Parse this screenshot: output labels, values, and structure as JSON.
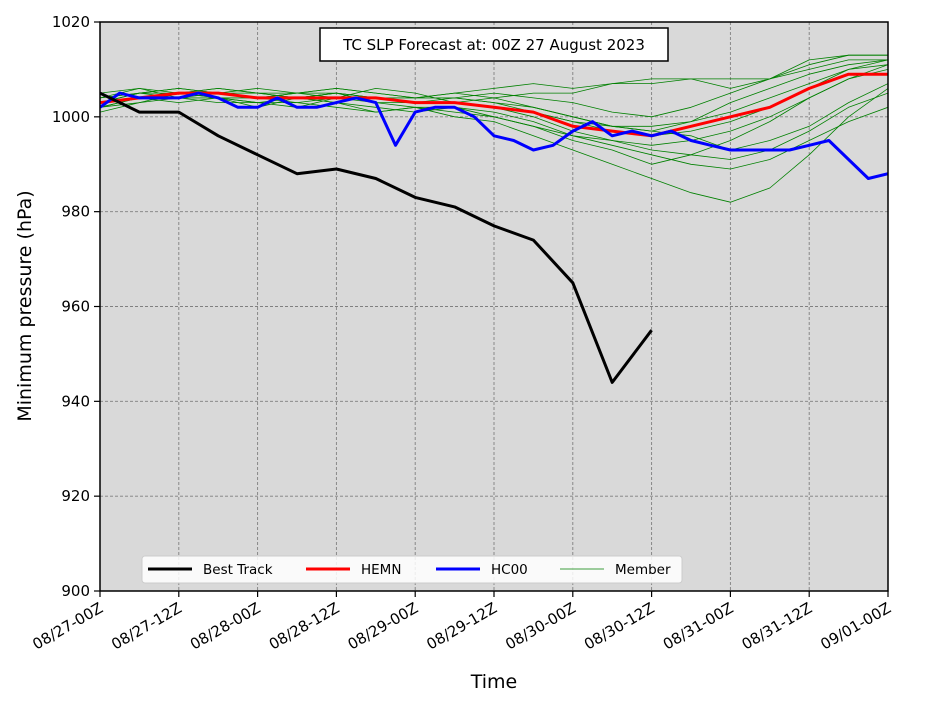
{
  "chart_data": {
    "type": "line",
    "title": "TC SLP Forecast at: 00Z 27 August 2023",
    "xlabel": "Time",
    "ylabel": "Minimum pressure (hPa)",
    "ylim": [
      900,
      1020
    ],
    "xlim": [
      0,
      120
    ],
    "x_unit": "hours after 08/27-00Z",
    "yticks": [
      900,
      920,
      940,
      960,
      980,
      1000,
      1020
    ],
    "xticks": [
      0,
      12,
      24,
      36,
      48,
      60,
      72,
      84,
      96,
      108,
      120
    ],
    "xtick_labels": [
      "08/27-00Z",
      "08/27-12Z",
      "08/28-00Z",
      "08/28-12Z",
      "08/29-00Z",
      "08/29-12Z",
      "08/30-00Z",
      "08/30-12Z",
      "08/31-00Z",
      "08/31-12Z",
      "09/01-00Z"
    ],
    "grid": true,
    "legend_position": "lower-left",
    "series": [
      {
        "name": "Best Track",
        "color": "#000000",
        "width": 3,
        "x": [
          0,
          6,
          12,
          18,
          24,
          30,
          36,
          42,
          48,
          54,
          60,
          66,
          72,
          78,
          84
        ],
        "y": [
          1005,
          1001,
          1001,
          996,
          992,
          988,
          989,
          987,
          983,
          981,
          977,
          974,
          965,
          944,
          955
        ]
      },
      {
        "name": "HEMN",
        "color": "#ff0000",
        "width": 3,
        "x": [
          0,
          6,
          12,
          18,
          24,
          30,
          36,
          42,
          48,
          54,
          60,
          66,
          72,
          78,
          84,
          90,
          96,
          102,
          108,
          114,
          120
        ],
        "y": [
          1003,
          1004,
          1005,
          1005,
          1004,
          1004,
          1004,
          1004,
          1003,
          1003,
          1002,
          1001,
          998,
          997,
          996,
          998,
          1000,
          1002,
          1006,
          1009,
          1009
        ]
      },
      {
        "name": "HC00",
        "color": "#0000ff",
        "width": 3,
        "x": [
          0,
          3,
          6,
          9,
          12,
          15,
          18,
          21,
          24,
          27,
          30,
          33,
          36,
          39,
          42,
          45,
          48,
          51,
          54,
          57,
          60,
          63,
          66,
          69,
          72,
          75,
          78,
          81,
          84,
          87,
          90,
          93,
          96,
          99,
          102,
          105,
          108,
          111,
          114,
          117,
          120
        ],
        "y": [
          1002,
          1005,
          1004,
          1004,
          1004,
          1005,
          1004,
          1002,
          1002,
          1004,
          1002,
          1002,
          1003,
          1004,
          1003,
          994,
          1001,
          1002,
          1002,
          1000,
          996,
          995,
          993,
          994,
          997,
          999,
          996,
          997,
          996,
          997,
          995,
          994,
          993,
          993,
          993,
          993,
          994,
          995,
          991,
          987,
          988
        ]
      },
      {
        "name": "Member",
        "color": "#008000",
        "width": 0.8,
        "members": [
          {
            "x": [
              0,
              6,
              12,
              18,
              24,
              30,
              36,
              42,
              48,
              54,
              60,
              66,
              72,
              78,
              84,
              90,
              96,
              102,
              108,
              114,
              120
            ],
            "y": [
              1004,
              1005,
              1006,
              1005,
              1005,
              1004,
              1005,
              1004,
              1004,
              1004,
              1005,
              1004,
              1003,
              1001,
              1000,
              1002,
              1005,
              1008,
              1011,
              1013,
              1013
            ]
          },
          {
            "x": [
              0,
              6,
              12,
              18,
              24,
              30,
              36,
              42,
              48,
              54,
              60,
              66,
              72,
              78,
              84,
              90,
              96,
              102,
              108,
              114,
              120
            ],
            "y": [
              1002,
              1004,
              1004,
              1003,
              1003,
              1002,
              1004,
              1003,
              1002,
              1001,
              1000,
              998,
              995,
              993,
              990,
              992,
              995,
              999,
              1004,
              1008,
              1010
            ]
          },
          {
            "x": [
              0,
              6,
              12,
              18,
              24,
              30,
              36,
              42,
              48,
              54,
              60,
              66,
              72,
              78,
              84,
              90,
              96,
              102,
              108,
              114,
              120
            ],
            "y": [
              1003,
              1005,
              1005,
              1004,
              1004,
              1005,
              1006,
              1005,
              1004,
              1005,
              1006,
              1007,
              1006,
              1007,
              1007,
              1008,
              1008,
              1008,
              1010,
              1012,
              1012
            ]
          },
          {
            "x": [
              0,
              6,
              12,
              18,
              24,
              30,
              36,
              42,
              48,
              54,
              60,
              66,
              72,
              78,
              84,
              90,
              96,
              102,
              108,
              114,
              120
            ],
            "y": [
              1001,
              1003,
              1004,
              1004,
              1003,
              1003,
              1002,
              1001,
              1002,
              1000,
              999,
              996,
              993,
              990,
              987,
              984,
              982,
              985,
              992,
              1000,
              1006
            ]
          },
          {
            "x": [
              0,
              6,
              12,
              18,
              24,
              30,
              36,
              42,
              48,
              54,
              60,
              66,
              72,
              78,
              84,
              90,
              96,
              102,
              108,
              114,
              120
            ],
            "y": [
              1005,
              1006,
              1005,
              1006,
              1005,
              1005,
              1006,
              1005,
              1004,
              1005,
              1004,
              1005,
              1005,
              1007,
              1008,
              1008,
              1006,
              1008,
              1012,
              1013,
              1013
            ]
          },
          {
            "x": [
              0,
              6,
              12,
              18,
              24,
              30,
              36,
              42,
              48,
              54,
              60,
              66,
              72,
              78,
              84,
              90,
              96,
              102,
              108,
              114,
              120
            ],
            "y": [
              1003,
              1004,
              1003,
              1004,
              1002,
              1004,
              1003,
              1001,
              1002,
              1002,
              1001,
              999,
              996,
              995,
              994,
              995,
              997,
              1000,
              1004,
              1008,
              1011
            ]
          },
          {
            "x": [
              0,
              6,
              12,
              18,
              24,
              30,
              36,
              42,
              48,
              54,
              60,
              66,
              72,
              78,
              84,
              90,
              96,
              102,
              108,
              114,
              120
            ],
            "y": [
              1002,
              1004,
              1005,
              1005,
              1004,
              1004,
              1005,
              1003,
              1003,
              1003,
              1004,
              1002,
              1000,
              998,
              997,
              996,
              993,
              995,
              998,
              1003,
              1007
            ]
          },
          {
            "x": [
              0,
              6,
              12,
              18,
              24,
              30,
              36,
              42,
              48,
              54,
              60,
              66,
              72,
              78,
              84,
              90,
              96,
              102,
              108,
              114,
              120
            ],
            "y": [
              1003,
              1005,
              1006,
              1005,
              1004,
              1003,
              1004,
              1004,
              1003,
              1004,
              1003,
              1001,
              999,
              997,
              996,
              997,
              999,
              1002,
              1006,
              1010,
              1012
            ]
          },
          {
            "x": [
              0,
              6,
              12,
              18,
              24,
              30,
              36,
              42,
              48,
              54,
              60,
              66,
              72,
              78,
              84,
              90,
              96,
              102,
              108,
              114,
              120
            ],
            "y": [
              1004,
              1006,
              1004,
              1005,
              1006,
              1005,
              1004,
              1006,
              1005,
              1003,
              1002,
              1000,
              997,
              995,
              993,
              992,
              991,
              993,
              997,
              1002,
              1005
            ]
          },
          {
            "x": [
              0,
              6,
              12,
              18,
              24,
              30,
              36,
              42,
              48,
              54,
              60,
              66,
              72,
              78,
              84,
              90,
              96,
              102,
              108,
              114,
              120
            ],
            "y": [
              1002,
              1003,
              1005,
              1004,
              1003,
              1004,
              1003,
              1002,
              1001,
              1002,
              1000,
              998,
              996,
              994,
              992,
              990,
              989,
              991,
              995,
              999,
              1002
            ]
          },
          {
            "x": [
              0,
              6,
              12,
              18,
              24,
              30,
              36,
              42,
              48,
              54,
              60,
              66,
              72,
              78,
              84,
              90,
              96,
              102,
              108,
              114,
              120
            ],
            "y": [
              1003,
              1004,
              1005,
              1006,
              1005,
              1004,
              1005,
              1004,
              1003,
              1003,
              1002,
              1001,
              999,
              998,
              998,
              999,
              1001,
              1004,
              1007,
              1010,
              1011
            ]
          },
          {
            "x": [
              0,
              6,
              12,
              18,
              24,
              30,
              36,
              42,
              48,
              54,
              60,
              66,
              72,
              78,
              84,
              90,
              96,
              102,
              108,
              114,
              120
            ],
            "y": [
              1004,
              1005,
              1004,
              1004,
              1004,
              1005,
              1005,
              1004,
              1004,
              1004,
              1003,
              1002,
              1000,
              998,
              997,
              999,
              1003,
              1006,
              1009,
              1011,
              1012
            ]
          }
        ]
      }
    ]
  }
}
